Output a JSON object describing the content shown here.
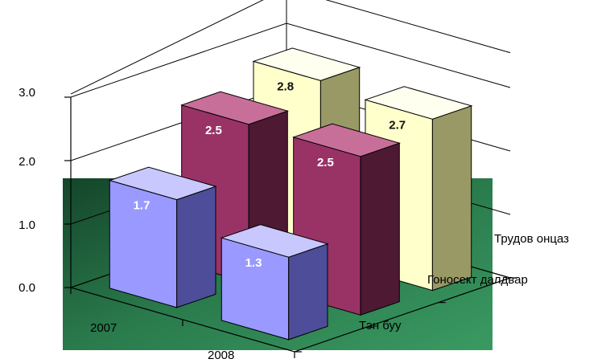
{
  "chart_data": {
    "type": "bar",
    "variant": "3d-column",
    "categories": [
      "2007",
      "2008"
    ],
    "series": [
      {
        "name": "Тэн буу",
        "values": [
          1.7,
          1.3
        ]
      },
      {
        "name": "Гоносект далдвар",
        "values": [
          2.5,
          2.5
        ]
      },
      {
        "name": "Трудов онцаз",
        "values": [
          2.8,
          2.7
        ]
      }
    ],
    "data_labels": [
      [
        "1.7",
        "1.3"
      ],
      [
        "2.5",
        "2.5"
      ],
      [
        "2.8",
        "2.7"
      ]
    ],
    "y_ticks": [
      "0.0",
      "1.0",
      "2.0",
      "3.0"
    ],
    "ylim": [
      0,
      3
    ],
    "grid": true,
    "colors": {
      "series": [
        "#9999ff",
        "#993366",
        "#ffffcc"
      ],
      "series_side": [
        "#4d4d99",
        "#4d1933",
        "#999966"
      ],
      "series_top": [
        "#c8c8ff",
        "#c86f99",
        "#fffff0"
      ],
      "floor": "#2e8a55",
      "floor_dark": "#14452a"
    }
  }
}
